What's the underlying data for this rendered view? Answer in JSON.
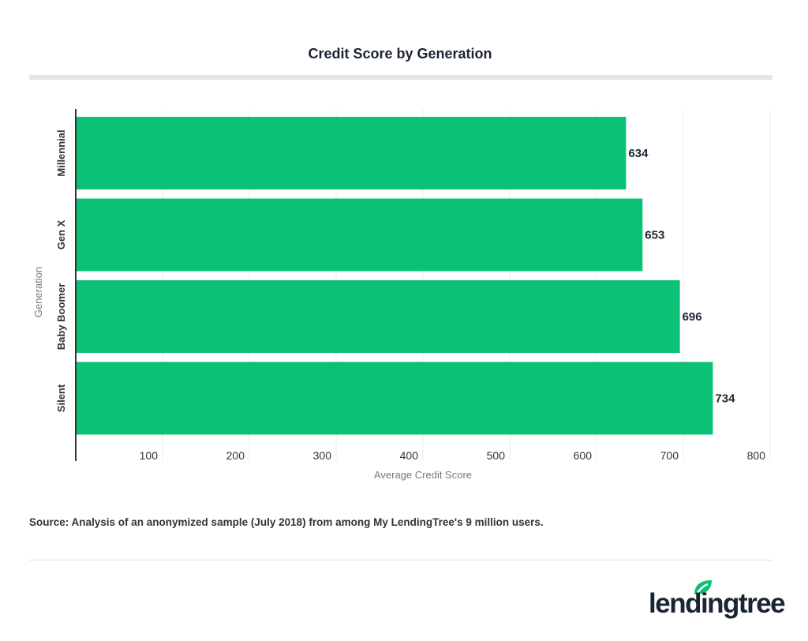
{
  "chart_data": {
    "type": "bar",
    "orientation": "horizontal",
    "title": "Credit Score by Generation",
    "categories": [
      "Millennial",
      "Gen X",
      "Baby Boomer",
      "Silent"
    ],
    "values": [
      634,
      653,
      696,
      734
    ],
    "xlabel": "Average Credit Score",
    "ylabel": "Generation",
    "xlim": [
      0,
      800
    ],
    "xticks": [
      100,
      200,
      300,
      400,
      500,
      600,
      700,
      800
    ],
    "grid": true,
    "bar_color": "#0bc175",
    "data_labels": true
  },
  "source": "Source: Analysis of an anonymized sample (July 2018) from among My LendingTree's 9 million users.",
  "logo": {
    "text": "lendingtree",
    "color": "#1b2433",
    "leaf_color": "#0bc175"
  }
}
